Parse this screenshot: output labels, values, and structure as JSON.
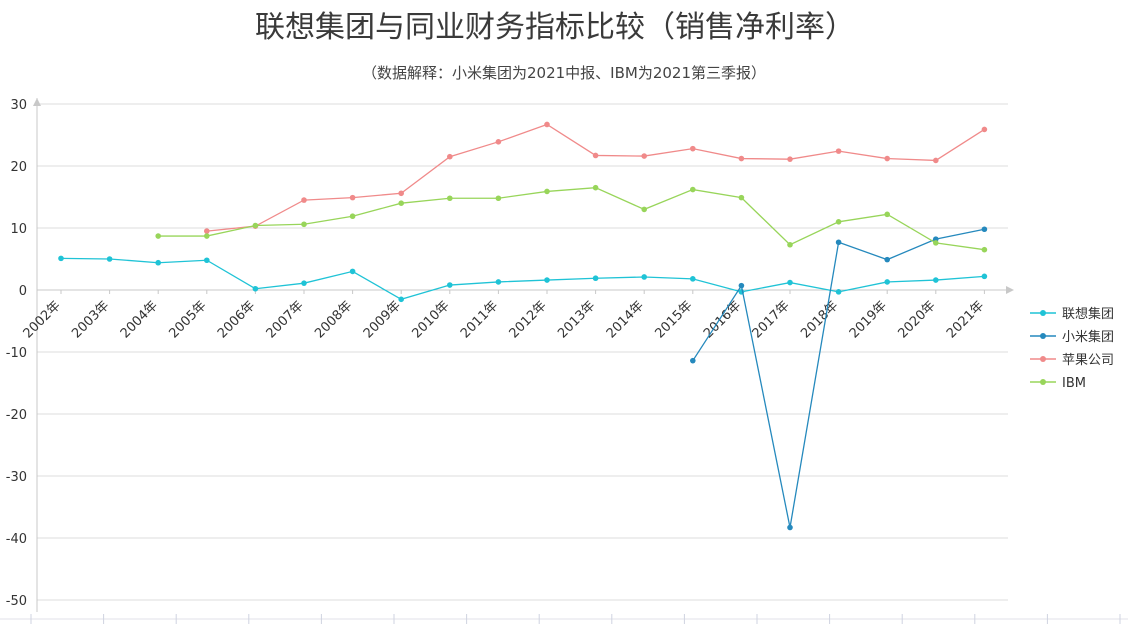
{
  "chart_data": {
    "type": "line",
    "title": "联想集团与同业财务指标比较（销售净利率）",
    "subtitle": "（数据解释：小米集团为2021中报、IBM为2021第三季报）",
    "categories": [
      "2002年",
      "2003年",
      "2004年",
      "2005年",
      "2006年",
      "2007年",
      "2008年",
      "2009年",
      "2010年",
      "2011年",
      "2012年",
      "2013年",
      "2014年",
      "2015年",
      "2016年",
      "2017年",
      "2018年",
      "2019年",
      "2020年",
      "2021年"
    ],
    "ylim": [
      -50,
      30
    ],
    "yticks": [
      30,
      20,
      10,
      0,
      -10,
      -20,
      -30,
      -40,
      -50
    ],
    "grid": true,
    "legend_position": "right",
    "series": [
      {
        "name": "联想集团",
        "color": "#1fc3d6",
        "values": [
          5.1,
          5.0,
          4.4,
          4.8,
          0.2,
          1.1,
          3.0,
          -1.5,
          0.8,
          1.3,
          1.6,
          1.9,
          2.1,
          1.8,
          -0.3,
          1.2,
          -0.3,
          1.3,
          1.6,
          2.2
        ]
      },
      {
        "name": "小米集团",
        "color": "#2589bd",
        "values": [
          null,
          null,
          null,
          null,
          null,
          null,
          null,
          null,
          null,
          null,
          null,
          null,
          null,
          -11.4,
          0.7,
          -38.3,
          7.7,
          4.9,
          8.2,
          9.8
        ]
      },
      {
        "name": "苹果公司",
        "color": "#f08a8a",
        "values": [
          null,
          null,
          null,
          9.5,
          10.3,
          14.5,
          14.9,
          15.6,
          21.5,
          23.9,
          26.7,
          21.7,
          21.6,
          22.8,
          21.2,
          21.1,
          22.4,
          21.2,
          20.9,
          25.9
        ]
      },
      {
        "name": "IBM",
        "color": "#98d55a",
        "values": [
          null,
          null,
          8.7,
          8.7,
          10.4,
          10.6,
          11.9,
          14.0,
          14.8,
          14.8,
          15.9,
          16.5,
          13.0,
          16.2,
          14.9,
          7.3,
          11.0,
          12.2,
          7.6,
          6.5
        ]
      }
    ]
  }
}
